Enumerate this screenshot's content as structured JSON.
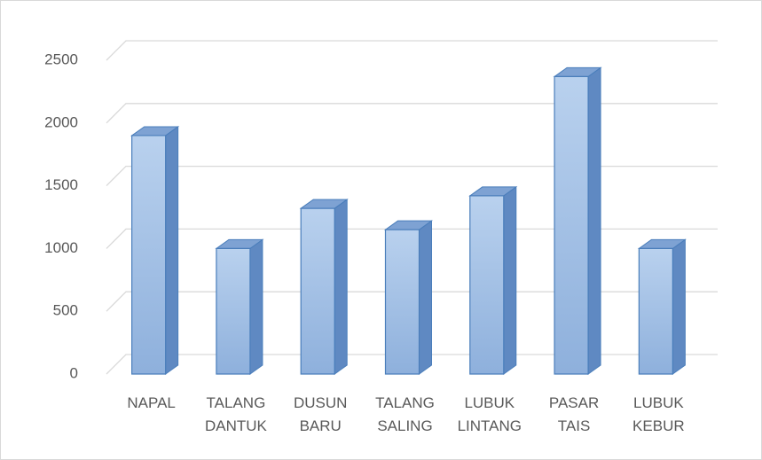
{
  "chart_data": {
    "type": "bar3d",
    "categories": [
      "NAPAL",
      "TALANG DANTUK",
      "DUSUN BARU",
      "TALANG SALING",
      "LUBUK LINTANG",
      "PASAR TAIS",
      "LUBUK KEBUR"
    ],
    "values": [
      1900,
      1000,
      1320,
      1150,
      1420,
      2370,
      1000
    ],
    "color": "#9dbde6",
    "ylim": [
      0,
      2500
    ],
    "yticks": [
      0,
      500,
      1000,
      1500,
      2000,
      2500
    ],
    "grid": true
  }
}
